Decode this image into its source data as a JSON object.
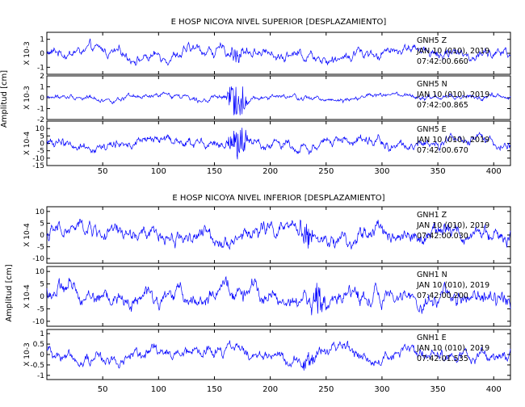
{
  "chart_data": [
    {
      "type": "line",
      "title": "E HOSP NICOYA NIVEL SUPERIOR [DESPLAZAMIENTO]",
      "ylabel": "Amplitud [cm]",
      "xlim": [
        0,
        415
      ],
      "x_ticks": [
        50,
        100,
        150,
        200,
        250,
        300,
        350,
        400
      ],
      "line_color": "#0000ff",
      "traces": [
        {
          "station": "GNH5",
          "component": "Z",
          "date": "JAN 10 (010), 2019",
          "time": "07:42:00.660",
          "scale": "X 10-3",
          "ylim": [
            -1.5,
            1.5
          ],
          "yticks": [
            {
              "v": 1,
              "t": "1"
            },
            {
              "v": 0,
              "t": "0"
            },
            {
              "v": -1,
              "t": "-1"
            }
          ],
          "amp": 0.45,
          "peak": 1.2,
          "burst": [
            163,
            178
          ],
          "burst_amp": 0.7,
          "burst_level": 0
        },
        {
          "station": "GNH5",
          "component": "N",
          "date": "JAN 10 (010), 2019",
          "time": "07:42:00.865",
          "scale": "X 10-3",
          "ylim": [
            -2,
            2
          ],
          "yticks": [
            {
              "v": 2,
              "t": "2"
            },
            {
              "v": 1,
              "t": "1"
            },
            {
              "v": 0,
              "t": "0"
            },
            {
              "v": -1,
              "t": "-1"
            },
            {
              "v": -2,
              "t": "-2"
            }
          ],
          "amp": 0.3,
          "peak": 0.8,
          "burst": [
            160,
            180
          ],
          "burst_amp": 1.8,
          "burst_level": 0
        },
        {
          "station": "GNH5",
          "component": "E",
          "date": "JAN 10 (010), 2019",
          "time": "07:42:00.670",
          "scale": "X 10-4",
          "ylim": [
            -15,
            15
          ],
          "yticks": [
            {
              "v": 10,
              "t": "10"
            },
            {
              "v": 5,
              "t": "5"
            },
            {
              "v": 0,
              "t": "0"
            },
            {
              "v": -5,
              "t": "-5"
            },
            {
              "v": -10,
              "t": "-10"
            },
            {
              "v": -15,
              "t": "-15"
            }
          ],
          "amp": 4,
          "peak": 10,
          "burst": [
            160,
            182
          ],
          "burst_amp": 10,
          "burst_level": 0
        }
      ]
    },
    {
      "type": "line",
      "title": "E HOSP NICOYA NIVEL INFERIOR [DESPLAZAMIENTO]",
      "ylabel": "Amplitud [cm]",
      "xlim": [
        0,
        415
      ],
      "x_ticks": [
        50,
        100,
        150,
        200,
        250,
        300,
        350,
        400
      ],
      "line_color": "#0000ff",
      "traces": [
        {
          "station": "GNH1",
          "component": "Z",
          "date": "JAN 10 (010), 2019",
          "time": "07:42:00.030",
          "scale": "X 10-4",
          "ylim": [
            -12,
            12
          ],
          "yticks": [
            {
              "v": 10,
              "t": "10"
            },
            {
              "v": 5,
              "t": "5"
            },
            {
              "v": 0,
              "t": "0"
            },
            {
              "v": -5,
              "t": "-5"
            },
            {
              "v": -10,
              "t": "-10"
            }
          ],
          "amp": 4,
          "peak": 11,
          "burst": [
            225,
            240
          ],
          "burst_amp": 5,
          "burst_level": 0
        },
        {
          "station": "GNH1",
          "component": "N",
          "date": "JAN 10 (010), 2019",
          "time": "07:42:00.200",
          "scale": "X 10-4",
          "ylim": [
            -12,
            12
          ],
          "yticks": [
            {
              "v": 10,
              "t": "10"
            },
            {
              "v": 5,
              "t": "5"
            },
            {
              "v": 0,
              "t": "0"
            },
            {
              "v": -5,
              "t": "-5"
            },
            {
              "v": -10,
              "t": "-10"
            }
          ],
          "amp": 4,
          "peak": 10,
          "burst": [
            235,
            250
          ],
          "burst_amp": 6,
          "burst_level": 0
        },
        {
          "station": "GNH1",
          "component": "E",
          "date": "JAN 10 (010), 2019",
          "time": "07:42:01.535",
          "scale": "X 10-3",
          "ylim": [
            -1.2,
            1.2
          ],
          "yticks": [
            {
              "v": 1,
              "t": "1"
            },
            {
              "v": 0.5,
              "t": "0.5"
            },
            {
              "v": 0,
              "t": "0"
            },
            {
              "v": -0.5,
              "t": "-0.5"
            },
            {
              "v": -1,
              "t": "-1"
            }
          ],
          "amp": 0.35,
          "peak": 1.0,
          "burst": [
            225,
            245
          ],
          "burst_amp": 0.35,
          "burst_level": 0
        }
      ]
    }
  ]
}
